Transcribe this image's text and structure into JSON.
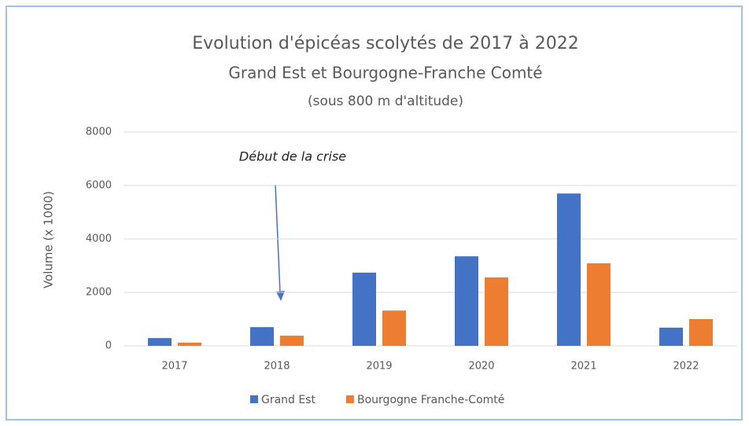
{
  "chart_data": {
    "type": "bar",
    "title": "Evolution d'épicéas scolytés de 2017 à 2022",
    "subtitle": [
      "Grand Est et Bourgogne-Franche Comté",
      "(sous 800 m d'altitude)"
    ],
    "y_label": "Volume (x 1000)",
    "annotations": [
      "Début de la crise"
    ],
    "categories": [
      "2017",
      "2018",
      "2019",
      "2020",
      "2021",
      "2022"
    ],
    "series": [
      {
        "name": "Grand Est",
        "color": "#4472c4",
        "values": [
          290,
          700,
          2740,
          3350,
          5700,
          680
        ]
      },
      {
        "name": "Bourgogne Franche-Comté",
        "color": "#ed7d31",
        "values": [
          120,
          380,
          1320,
          2560,
          3090,
          1000
        ]
      }
    ],
    "ylim": [
      0,
      8000
    ],
    "yticks": [
      0,
      2000,
      4000,
      6000,
      8000
    ],
    "grid": true,
    "legend": "bottom"
  }
}
